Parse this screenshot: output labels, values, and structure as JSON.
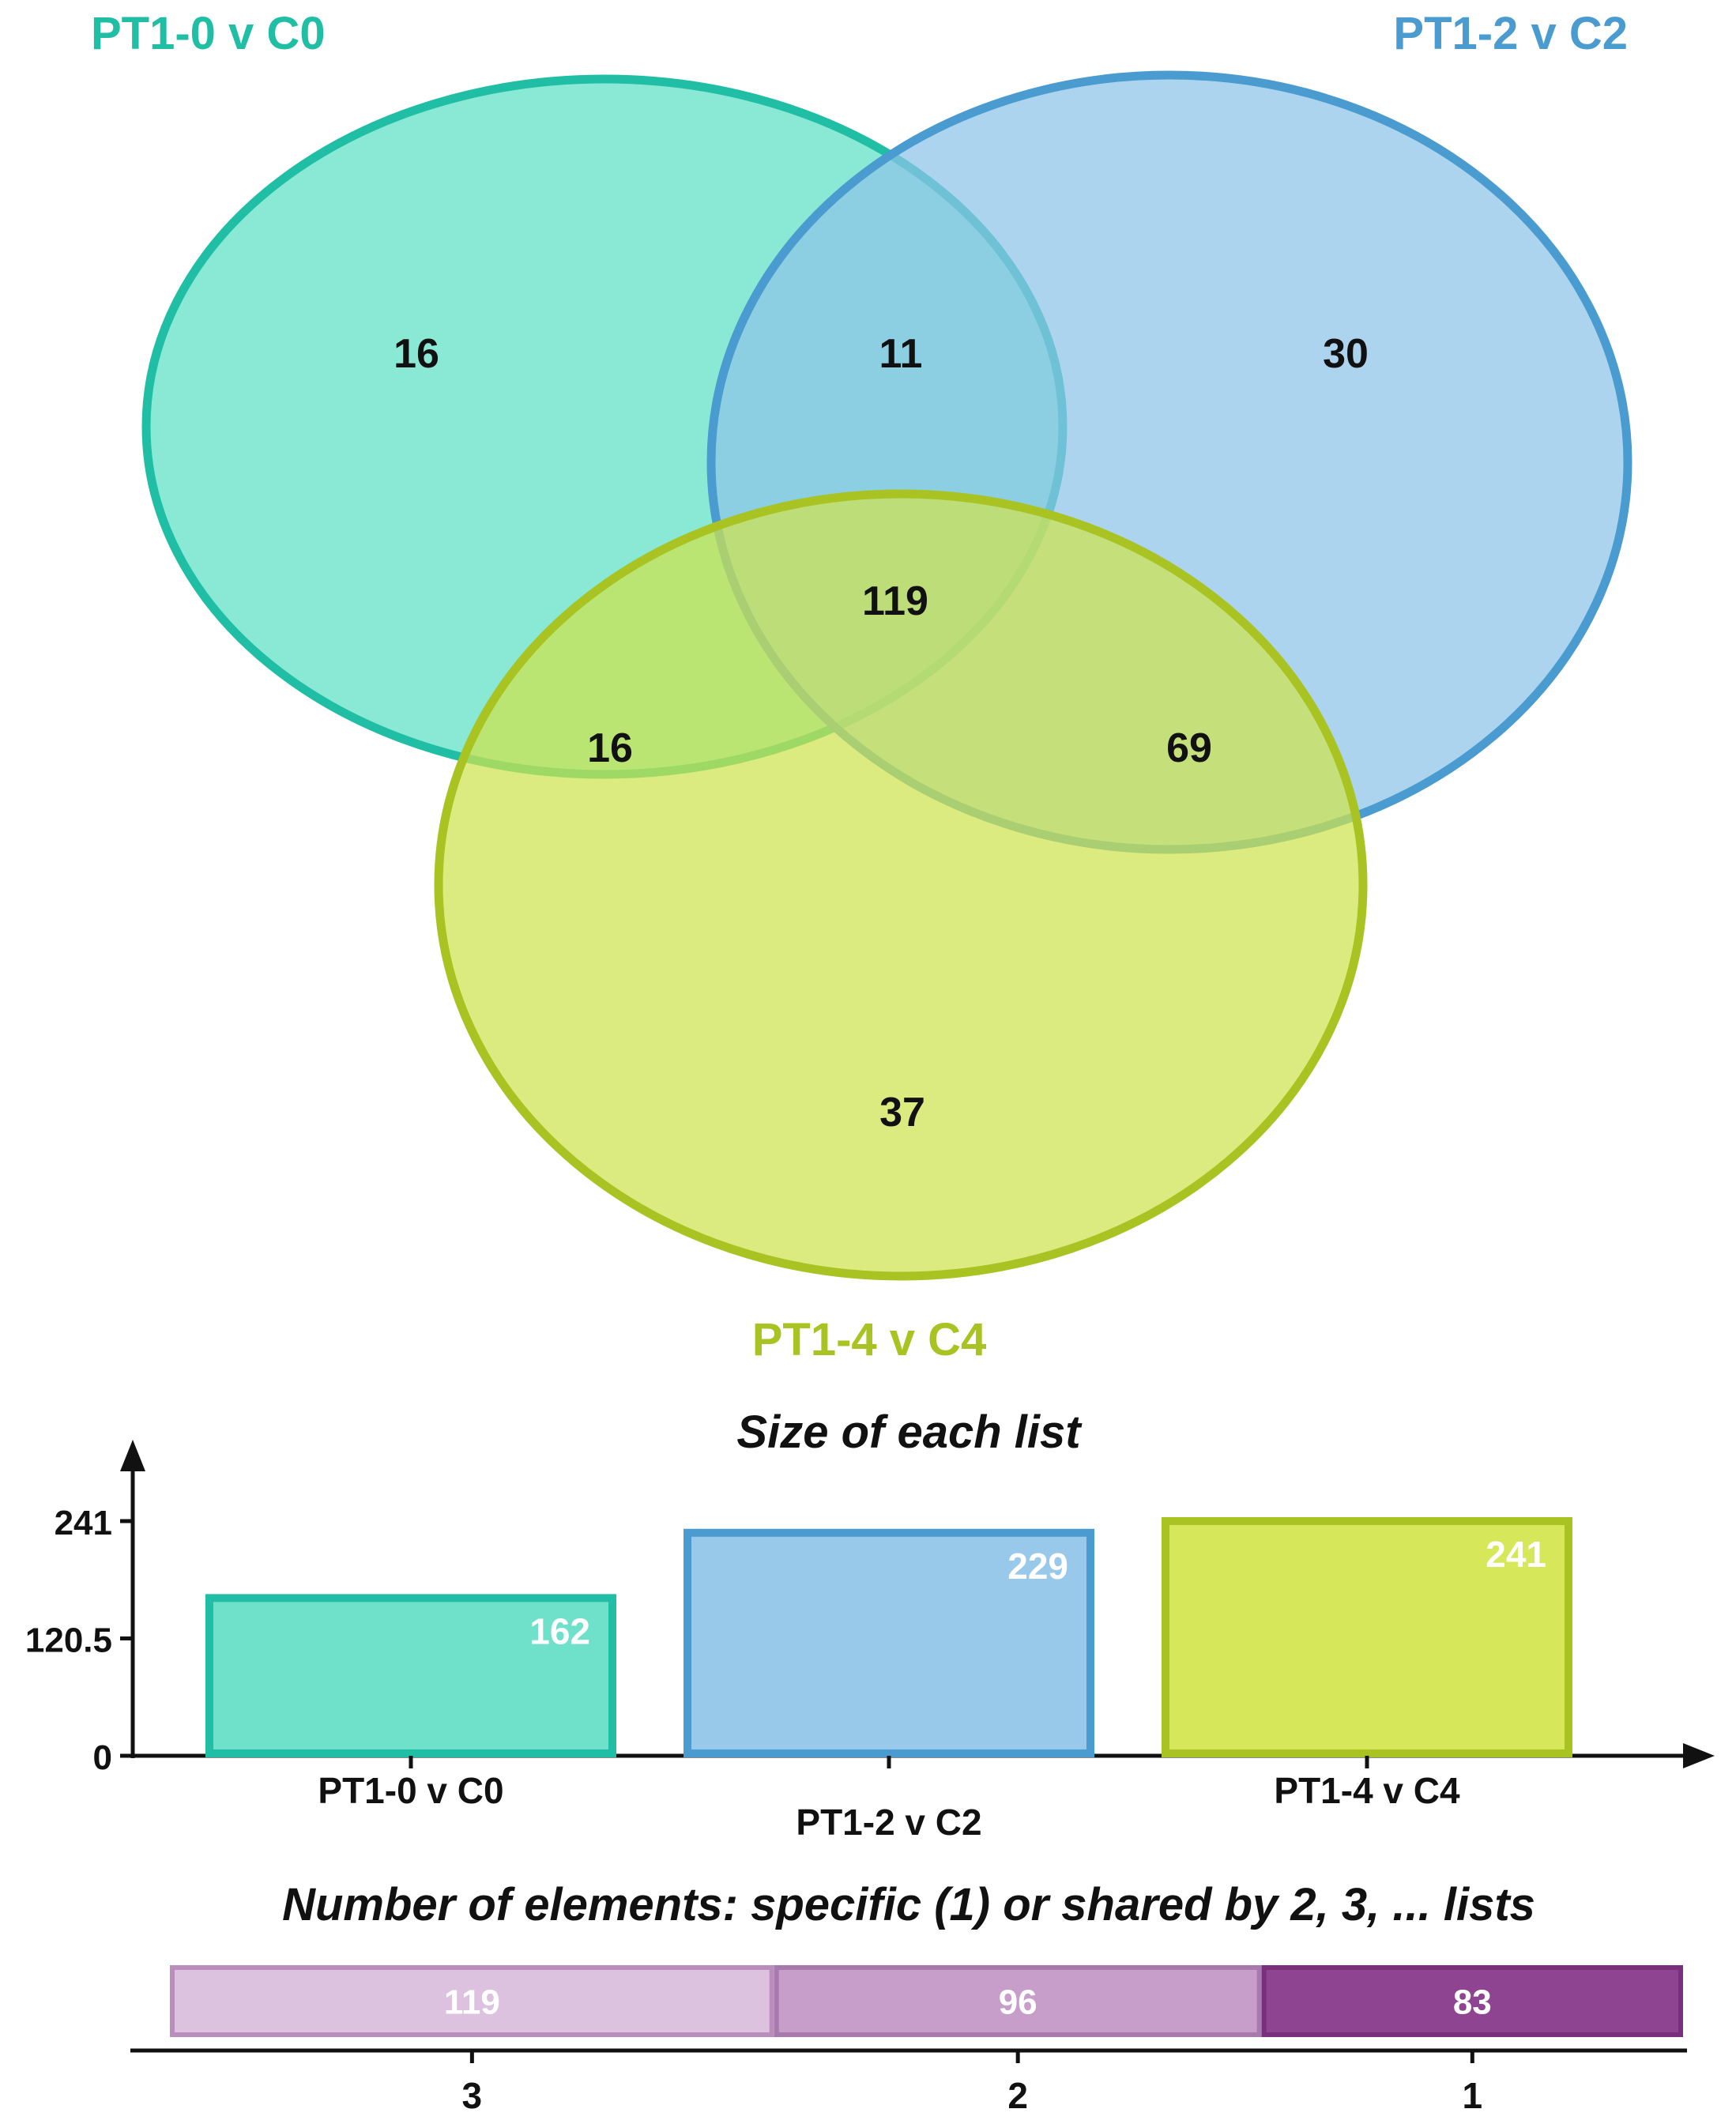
{
  "chart_data": [
    {
      "type": "venn",
      "sets": [
        {
          "name": "PT1-0 v C0",
          "color": "#20bfa5",
          "fill": "#5ce0c4"
        },
        {
          "name": "PT1-2 v C2",
          "color": "#4a9bd0",
          "fill": "#8ec3e8"
        },
        {
          "name": "PT1-4 v C4",
          "color": "#a9c322",
          "fill": "#cfe34d"
        }
      ],
      "regions": {
        "only_a": "16",
        "only_b": "30",
        "only_c": "37",
        "a_b": "11",
        "a_c": "16",
        "b_c": "69",
        "a_b_c": "119"
      }
    },
    {
      "type": "bar",
      "title": "Size of each list",
      "categories": [
        "PT1-0 v C0",
        "PT1-2 v C2",
        "PT1-4 v C4"
      ],
      "values": [
        162,
        229,
        241
      ],
      "colors": [
        "#20bfa5",
        "#4a9bd0",
        "#a9c322"
      ],
      "fills": [
        "#6fe0c9",
        "#98c8ea",
        "#d6e85a"
      ],
      "yticks": [
        "0",
        "120.5",
        "241"
      ],
      "ylim": [
        0,
        241
      ]
    },
    {
      "type": "bar",
      "orientation": "stacked-horizontal",
      "title": "Number of elements: specific (1) or shared by 2, 3, ... lists",
      "categories": [
        "3",
        "2",
        "1"
      ],
      "values": [
        119,
        96,
        83
      ],
      "fills": [
        "#dcc2df",
        "#c79dca",
        "#8e4490"
      ],
      "borders": [
        "#b98ebd",
        "#a879ad",
        "#7a2f7e"
      ]
    }
  ]
}
